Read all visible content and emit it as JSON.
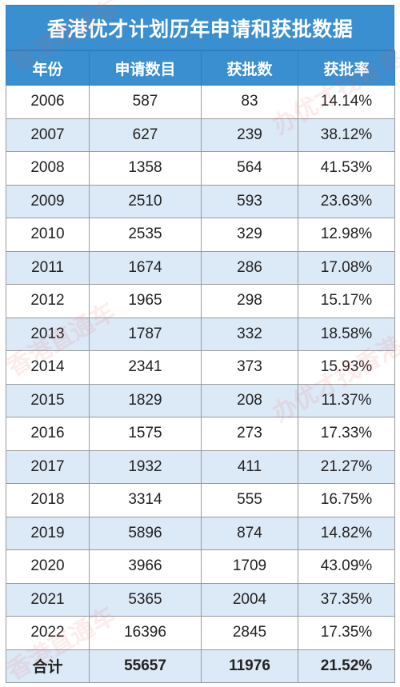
{
  "table": {
    "title": "香港优才计划历年申请和获批数据",
    "headers": [
      "年份",
      "申请数目",
      "获批数",
      "获批率"
    ],
    "rows": [
      [
        "2006",
        "587",
        "83",
        "14.14%"
      ],
      [
        "2007",
        "627",
        "239",
        "38.12%"
      ],
      [
        "2008",
        "1358",
        "564",
        "41.53%"
      ],
      [
        "2009",
        "2510",
        "593",
        "23.63%"
      ],
      [
        "2010",
        "2535",
        "329",
        "12.98%"
      ],
      [
        "2011",
        "1674",
        "286",
        "17.08%"
      ],
      [
        "2012",
        "1965",
        "298",
        "15.17%"
      ],
      [
        "2013",
        "1787",
        "332",
        "18.58%"
      ],
      [
        "2014",
        "2341",
        "373",
        "15.93%"
      ],
      [
        "2015",
        "1829",
        "208",
        "11.37%"
      ],
      [
        "2016",
        "1575",
        "273",
        "17.33%"
      ],
      [
        "2017",
        "1932",
        "411",
        "21.27%"
      ],
      [
        "2018",
        "3314",
        "555",
        "16.75%"
      ],
      [
        "2019",
        "5896",
        "874",
        "14.82%"
      ],
      [
        "2020",
        "3966",
        "1709",
        "43.09%"
      ],
      [
        "2021",
        "5365",
        "2004",
        "37.35%"
      ],
      [
        "2022",
        "16396",
        "2845",
        "17.35%"
      ]
    ],
    "total": [
      "合计",
      "55657",
      "11976",
      "21.52%"
    ]
  },
  "watermarks": [
    "香港直通车",
    "办优才找香港",
    "香港直通车",
    "办优才找香港",
    "香港直通车"
  ],
  "colors": {
    "header_bg": "#3a8fd0",
    "header_text": "#ffffff",
    "alt_row_bg": "#dce9f6",
    "border": "#9a9a9a"
  }
}
